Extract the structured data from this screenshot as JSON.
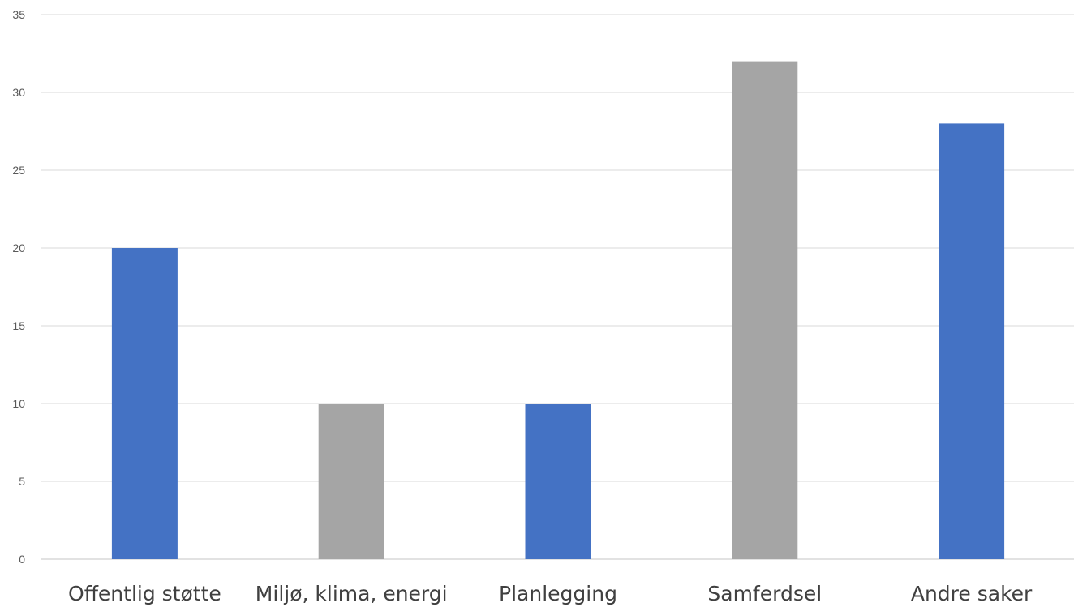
{
  "chart_data": {
    "type": "bar",
    "categories": [
      "Offentlig støtte",
      "Miljø, klima, energi",
      "Planlegging",
      "Samferdsel",
      "Andre saker"
    ],
    "values": [
      20,
      10,
      10,
      32,
      28
    ],
    "bar_colors": [
      "#4472c4",
      "#a5a5a5",
      "#4472c4",
      "#a5a5a5",
      "#4472c4"
    ],
    "title": "",
    "xlabel": "",
    "ylabel": "",
    "ylim": [
      0,
      35
    ],
    "yticks": [
      0,
      5,
      10,
      15,
      20,
      25,
      30,
      35
    ],
    "grid": true,
    "legend": "none"
  }
}
